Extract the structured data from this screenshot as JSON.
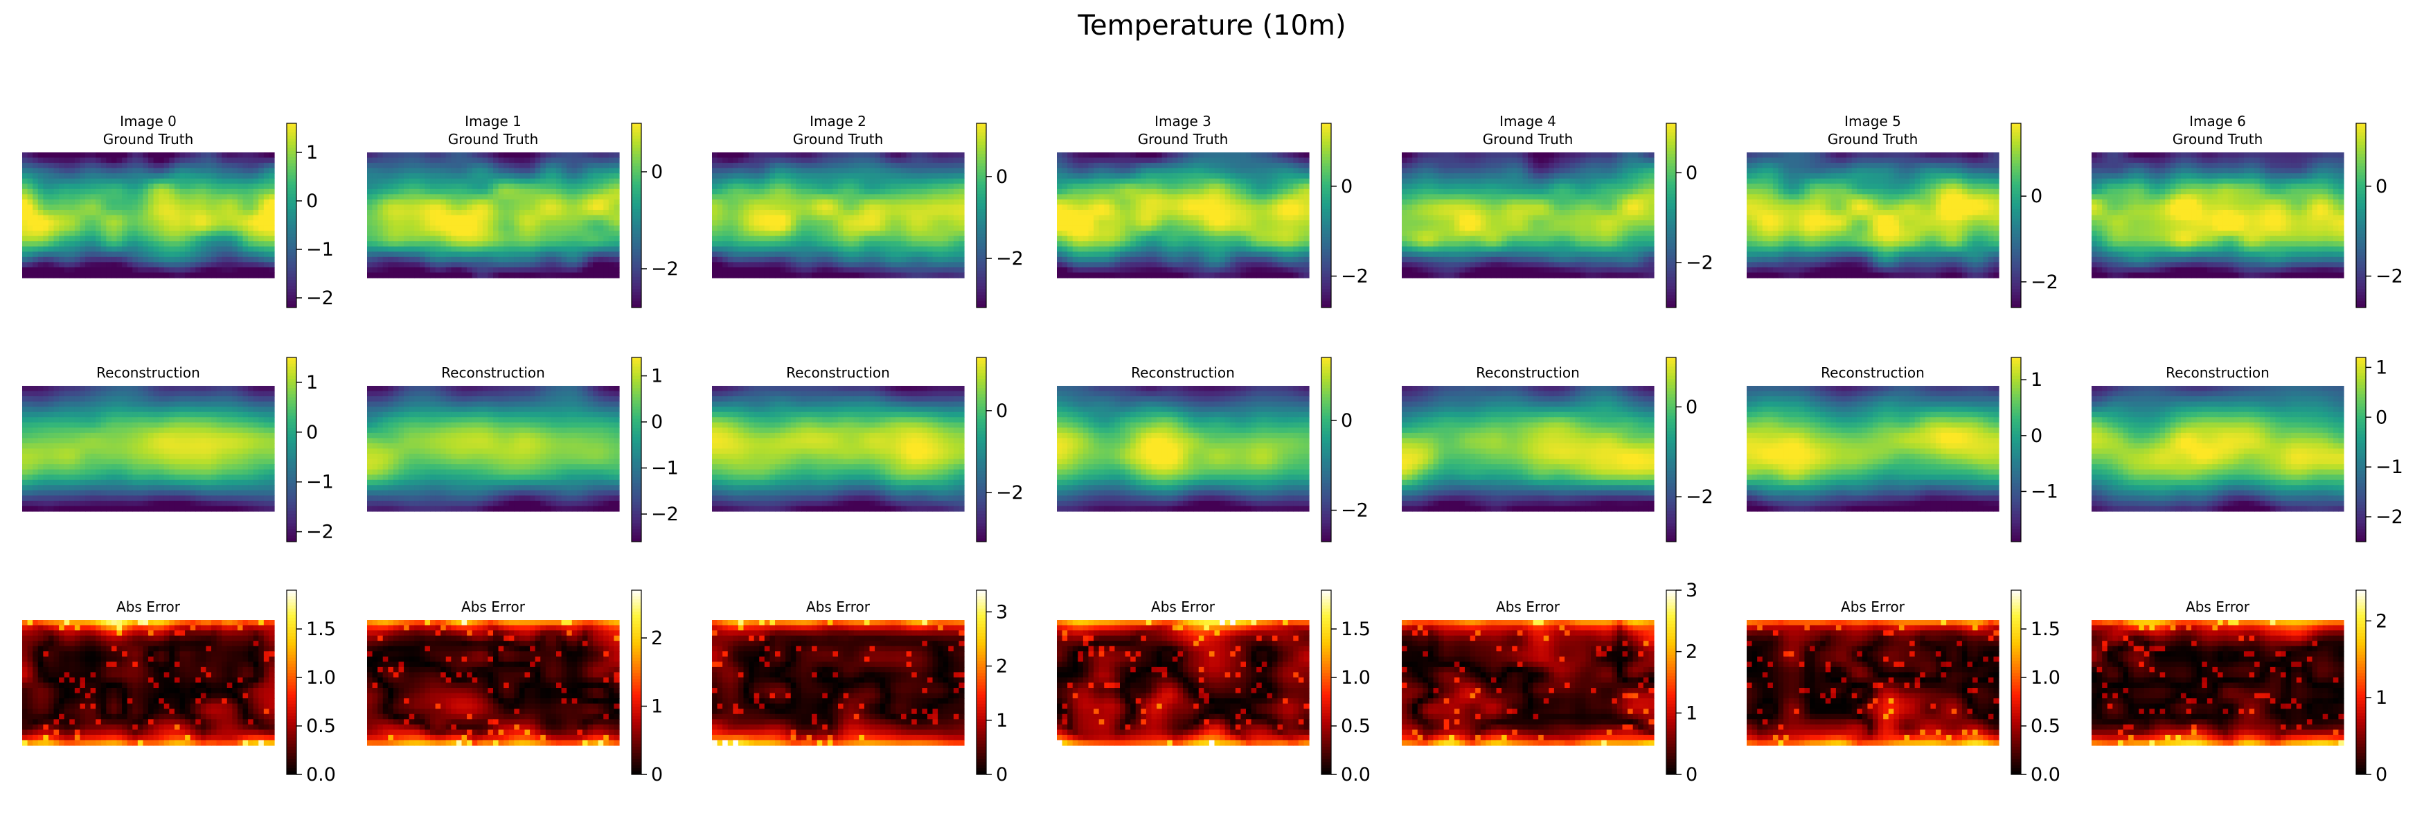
{
  "figure": {
    "title": "Temperature (10m)"
  },
  "colors": {
    "state_colormap": "viridis",
    "error_colormap": "hot",
    "ground_truth_colorbar_ticks": "#000000"
  },
  "chart_data": {
    "type": "heatmap",
    "title": "Temperature (10m)",
    "layout": {
      "rows": 3,
      "columns": 7
    },
    "row_titles": [
      "Ground Truth",
      "Reconstruction",
      "Abs Error"
    ],
    "panels": [
      {
        "image_label": "Image 0",
        "ground_truth": {
          "colormap": "viridis",
          "vmin": -2.2,
          "vmax": 1.6,
          "ticks": [
            1,
            0,
            -1,
            -2
          ]
        },
        "reconstruction": {
          "colormap": "viridis",
          "vmin": -2.2,
          "vmax": 1.5,
          "ticks": [
            1,
            0,
            -1,
            -2
          ]
        },
        "abs_error": {
          "colormap": "hot",
          "vmin": 0,
          "vmax": 1.9,
          "ticks": [
            "1.5",
            "1.0",
            "0.5",
            "0.0"
          ]
        }
      },
      {
        "image_label": "Image 1",
        "ground_truth": {
          "colormap": "viridis",
          "vmin": -2.8,
          "vmax": 1.0,
          "ticks": [
            0,
            -2
          ]
        },
        "reconstruction": {
          "colormap": "viridis",
          "vmin": -2.6,
          "vmax": 1.4,
          "ticks": [
            1,
            0,
            -1,
            -2
          ]
        },
        "abs_error": {
          "colormap": "hot",
          "vmin": 0,
          "vmax": 2.7,
          "ticks": [
            "2",
            "1",
            "0"
          ]
        }
      },
      {
        "image_label": "Image 2",
        "ground_truth": {
          "colormap": "viridis",
          "vmin": -3.2,
          "vmax": 1.3,
          "ticks": [
            0,
            -2
          ]
        },
        "reconstruction": {
          "colormap": "viridis",
          "vmin": -3.2,
          "vmax": 1.3,
          "ticks": [
            0,
            -2
          ]
        },
        "abs_error": {
          "colormap": "hot",
          "vmin": 0,
          "vmax": 3.4,
          "ticks": [
            "3",
            "2",
            "1",
            "0"
          ]
        }
      },
      {
        "image_label": "Image 3",
        "ground_truth": {
          "colormap": "viridis",
          "vmin": -2.7,
          "vmax": 1.4,
          "ticks": [
            0,
            -2
          ]
        },
        "reconstruction": {
          "colormap": "viridis",
          "vmin": -2.7,
          "vmax": 1.4,
          "ticks": [
            0,
            -2
          ]
        },
        "abs_error": {
          "colormap": "hot",
          "vmin": 0,
          "vmax": 1.9,
          "ticks": [
            "1.5",
            "1.0",
            "0.5",
            "0.0"
          ]
        }
      },
      {
        "image_label": "Image 4",
        "ground_truth": {
          "colormap": "viridis",
          "vmin": -3.0,
          "vmax": 1.1,
          "ticks": [
            0,
            -2
          ]
        },
        "reconstruction": {
          "colormap": "viridis",
          "vmin": -3.0,
          "vmax": 1.1,
          "ticks": [
            0,
            -2
          ]
        },
        "abs_error": {
          "colormap": "hot",
          "vmin": 0,
          "vmax": 3.0,
          "ticks": [
            "3",
            "2",
            "1",
            "0"
          ]
        }
      },
      {
        "image_label": "Image 5",
        "ground_truth": {
          "colormap": "viridis",
          "vmin": -2.6,
          "vmax": 1.7,
          "ticks": [
            0,
            -2
          ]
        },
        "reconstruction": {
          "colormap": "viridis",
          "vmin": -1.9,
          "vmax": 1.4,
          "ticks": [
            1,
            0,
            -1
          ]
        },
        "abs_error": {
          "colormap": "hot",
          "vmin": 0,
          "vmax": 1.9,
          "ticks": [
            "1.5",
            "1.0",
            "0.5",
            "0.0"
          ]
        }
      },
      {
        "image_label": "Image 6",
        "ground_truth": {
          "colormap": "viridis",
          "vmin": -2.7,
          "vmax": 1.4,
          "ticks": [
            0,
            -2
          ]
        },
        "reconstruction": {
          "colormap": "viridis",
          "vmin": -2.5,
          "vmax": 1.2,
          "ticks": [
            1,
            0,
            -1,
            -2
          ]
        },
        "abs_error": {
          "colormap": "hot",
          "vmin": 0,
          "vmax": 2.4,
          "ticks": [
            "2",
            "1",
            "0"
          ]
        }
      }
    ]
  }
}
